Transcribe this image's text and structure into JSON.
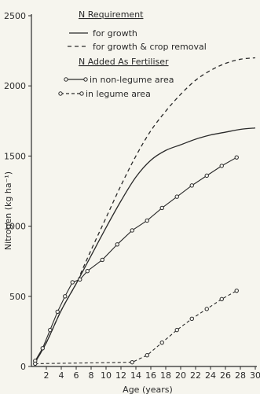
{
  "chart_data": {
    "type": "line",
    "xlabel": "Age (years)",
    "ylabel": "Nitrogen (kg ha⁻¹)",
    "xlim": [
      0,
      30
    ],
    "ylim": [
      0,
      2500
    ],
    "xticks": [
      2,
      4,
      6,
      8,
      10,
      12,
      14,
      16,
      18,
      20,
      22,
      24,
      26,
      28,
      30
    ],
    "yticks": [
      0,
      500,
      1000,
      1500,
      2000,
      2500
    ],
    "legend": {
      "placement": "top-left",
      "group1_title": "N Requirement",
      "group2_title": "N Added As Fertiliser"
    },
    "series": [
      {
        "name": "for growth",
        "style": "solid",
        "markers": false,
        "x": [
          0.5,
          2,
          4,
          6,
          6.5,
          8,
          10,
          12,
          14,
          16,
          18,
          20,
          22,
          24,
          26,
          28,
          30
        ],
        "y": [
          30,
          170,
          400,
          590,
          640,
          790,
          990,
          1180,
          1350,
          1470,
          1540,
          1580,
          1620,
          1650,
          1670,
          1690,
          1700
        ]
      },
      {
        "name": "for growth & crop removal",
        "style": "dashed",
        "markers": false,
        "x": [
          0.5,
          2,
          4,
          6,
          6.5,
          8,
          10,
          12,
          14,
          16,
          18,
          20,
          22,
          24,
          26,
          28,
          30
        ],
        "y": [
          30,
          170,
          400,
          590,
          650,
          830,
          1060,
          1290,
          1500,
          1680,
          1820,
          1940,
          2040,
          2110,
          2160,
          2190,
          2200
        ]
      },
      {
        "name": "in non-legume area",
        "style": "solid",
        "markers": true,
        "x": [
          0.5,
          1.5,
          2.5,
          3.5,
          4.5,
          5.5,
          6.5,
          7.5,
          9.5,
          11.5,
          13.5,
          15.5,
          17.5,
          19.5,
          21.5,
          23.5,
          25.5,
          27.5
        ],
        "y": [
          40,
          130,
          260,
          390,
          500,
          600,
          620,
          680,
          760,
          870,
          970,
          1040,
          1130,
          1210,
          1290,
          1360,
          1430,
          1490
        ]
      },
      {
        "name": "in legume area",
        "style": "dashed",
        "markers": true,
        "x": [
          0.5,
          13.5,
          15.5,
          17.5,
          19.5,
          21.5,
          23.5,
          25.5,
          27.5
        ],
        "y": [
          20,
          30,
          80,
          170,
          260,
          340,
          410,
          480,
          540
        ]
      }
    ]
  },
  "colors": {
    "background": "#f6f5ee",
    "ink": "#2a2a2a"
  }
}
